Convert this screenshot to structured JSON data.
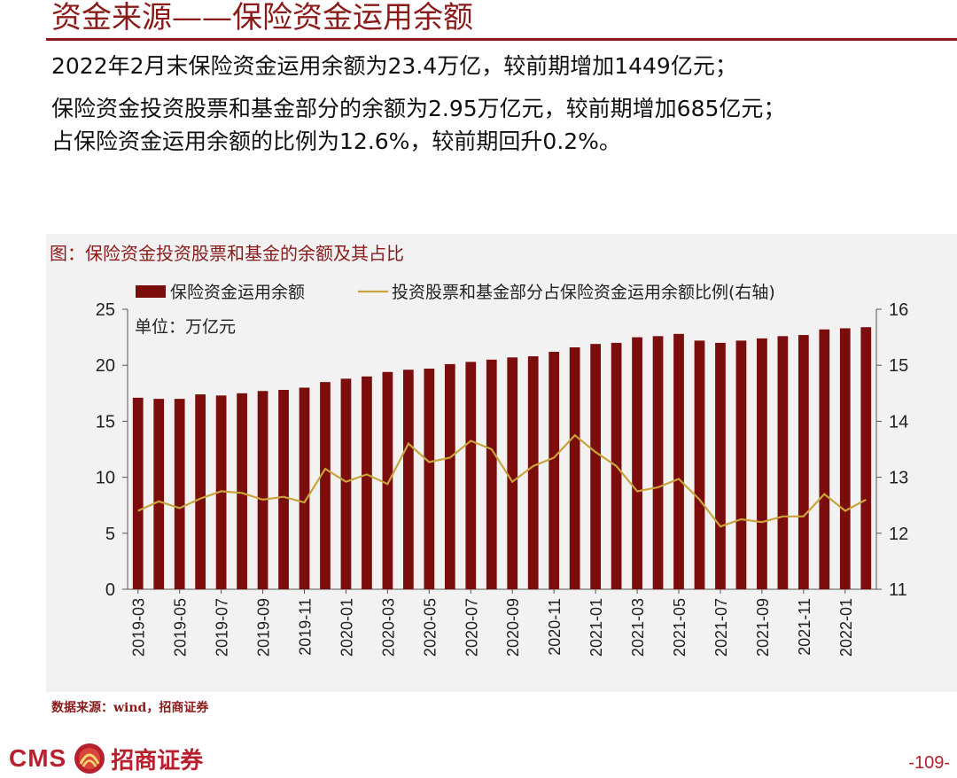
{
  "page": {
    "title": "资金来源——保险资金运用余额",
    "bullets": [
      "2022年2月末保险资金运用余额为23.4万亿，较前期增加1449亿元；",
      "保险资金投资股票和基金部分的余额为2.95万亿元，较前期增加685亿元；",
      "占保险资金运用余额的比例为12.6%，较前期回升0.2%。"
    ],
    "chart_caption": "图：保险资金投资股票和基金的余额及其占比",
    "source": "数据来源：wind，招商证券",
    "logo_text": "CMS",
    "logo_cn": "招商证券",
    "page_number": "-109-"
  },
  "colors": {
    "title": "#8b1a1a",
    "bar": "#7b0d0d",
    "line": "#c9a43b",
    "brand": "#b8202e"
  },
  "chart_data": {
    "type": "bar+line",
    "unit_note": "单位：万亿元",
    "categories": [
      "2019-03",
      "2019-04",
      "2019-05",
      "2019-06",
      "2019-07",
      "2019-08",
      "2019-09",
      "2019-10",
      "2019-11",
      "2019-12",
      "2020-01",
      "2020-02",
      "2020-03",
      "2020-04",
      "2020-05",
      "2020-06",
      "2020-07",
      "2020-08",
      "2020-09",
      "2020-10",
      "2020-11",
      "2020-12",
      "2021-01",
      "2021-02",
      "2021-03",
      "2021-04",
      "2021-05",
      "2021-06",
      "2021-07",
      "2021-08",
      "2021-09",
      "2021-10",
      "2021-11",
      "2021-12",
      "2022-01",
      "2022-02"
    ],
    "x_tick_labels": [
      "2019-03",
      "2019-05",
      "2019-07",
      "2019-09",
      "2019-11",
      "2020-01",
      "2020-03",
      "2020-05",
      "2020-07",
      "2020-09",
      "2020-11",
      "2021-01",
      "2021-03",
      "2021-05",
      "2021-07",
      "2021-09",
      "2021-11",
      "2022-01"
    ],
    "series": [
      {
        "name": "保险资金运用余额",
        "type": "bar",
        "axis": "left",
        "values": [
          17.1,
          17.0,
          17.0,
          17.4,
          17.3,
          17.5,
          17.7,
          17.8,
          18.0,
          18.5,
          18.8,
          19.0,
          19.4,
          19.6,
          19.7,
          20.1,
          20.3,
          20.5,
          20.7,
          20.8,
          21.2,
          21.6,
          21.9,
          22.0,
          22.5,
          22.6,
          22.8,
          22.2,
          22.0,
          22.2,
          22.4,
          22.6,
          22.7,
          23.2,
          23.3,
          23.4
        ]
      },
      {
        "name": "投资股票和基金部分占保险资金运用余额比例(右轴)",
        "type": "line",
        "axis": "right",
        "values": [
          12.4,
          12.57,
          12.45,
          12.62,
          12.75,
          12.72,
          12.6,
          12.65,
          12.55,
          13.15,
          12.92,
          13.05,
          12.88,
          13.6,
          13.27,
          13.35,
          13.65,
          13.5,
          12.92,
          13.2,
          13.35,
          13.75,
          13.45,
          13.2,
          12.75,
          12.82,
          12.97,
          12.6,
          12.12,
          12.25,
          12.2,
          12.3,
          12.3,
          12.7,
          12.4,
          12.6
        ]
      }
    ],
    "y_left": {
      "min": 0,
      "max": 25,
      "ticks": [
        0,
        5,
        10,
        15,
        20,
        25
      ]
    },
    "y_right": {
      "min": 11,
      "max": 16,
      "ticks": [
        11,
        12,
        13,
        14,
        15,
        16
      ]
    },
    "grid": false,
    "legend": "top"
  }
}
